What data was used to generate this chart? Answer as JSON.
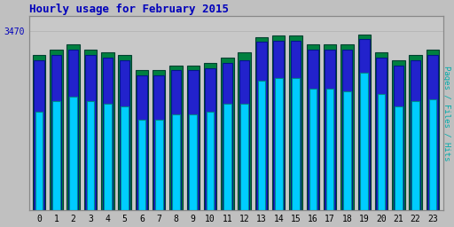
{
  "title": "Hourly usage for February 2015",
  "ylabel_right": "Pages / Files / Hits",
  "ytick_label": "3470",
  "hours": [
    0,
    1,
    2,
    3,
    4,
    5,
    6,
    7,
    8,
    9,
    10,
    11,
    12,
    13,
    14,
    15,
    16,
    17,
    18,
    19,
    20,
    21,
    22,
    23
  ],
  "pages": [
    3000,
    3100,
    3200,
    3100,
    3050,
    3000,
    2700,
    2700,
    2800,
    2800,
    2850,
    2950,
    3050,
    3350,
    3380,
    3380,
    3200,
    3200,
    3200,
    3400,
    3050,
    2900,
    3000,
    3100
  ],
  "files": [
    2900,
    3000,
    3100,
    3000,
    2950,
    2900,
    2600,
    2600,
    2700,
    2700,
    2750,
    2850,
    2900,
    3250,
    3280,
    3280,
    3100,
    3100,
    3100,
    3300,
    2950,
    2800,
    2900,
    3000
  ],
  "hits": [
    1900,
    2100,
    2200,
    2100,
    2050,
    2000,
    1750,
    1750,
    1850,
    1850,
    1900,
    2050,
    2050,
    2500,
    2550,
    2550,
    2350,
    2350,
    2300,
    2650,
    2250,
    2000,
    2100,
    2150
  ],
  "color_pages": "#008040",
  "color_files": "#2222cc",
  "color_hits": "#00ccff",
  "bar_edge_pages": "#004030",
  "bar_edge_files": "#001888",
  "bar_edge_hits": "#008888",
  "background_plot": "#c8c8c8",
  "background_fig": "#c0c0c0",
  "title_color": "#0000bb",
  "ytick_color": "#0000bb",
  "ylabel_color": "#00aaaa",
  "ymax": 3470,
  "ymin": 0
}
